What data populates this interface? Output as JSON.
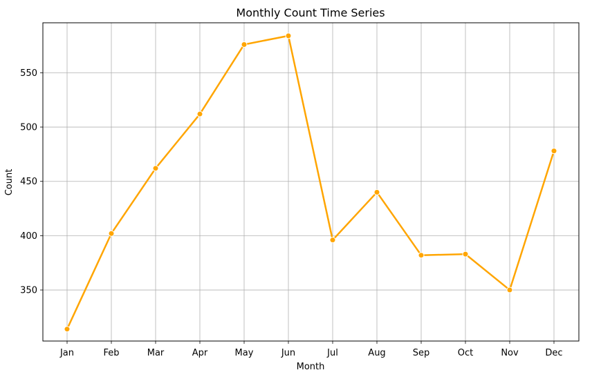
{
  "chart_data": {
    "type": "line",
    "title": "Monthly Count Time Series",
    "xlabel": "Month",
    "ylabel": "Count",
    "categories": [
      "Jan",
      "Feb",
      "Mar",
      "Apr",
      "May",
      "Jun",
      "Jul",
      "Aug",
      "Sep",
      "Oct",
      "Nov",
      "Dec"
    ],
    "series": [
      {
        "values": [
          314,
          402,
          462,
          512,
          576,
          584,
          396,
          440,
          382,
          383,
          350,
          478
        ]
      }
    ],
    "yticks": [
      350,
      400,
      450,
      500,
      550
    ],
    "ylim": [
      303,
      596
    ],
    "grid": true,
    "legend": "none",
    "colors": {
      "line": "#FFA500",
      "grid": "#b0b0b0",
      "axes": "#000000"
    }
  }
}
